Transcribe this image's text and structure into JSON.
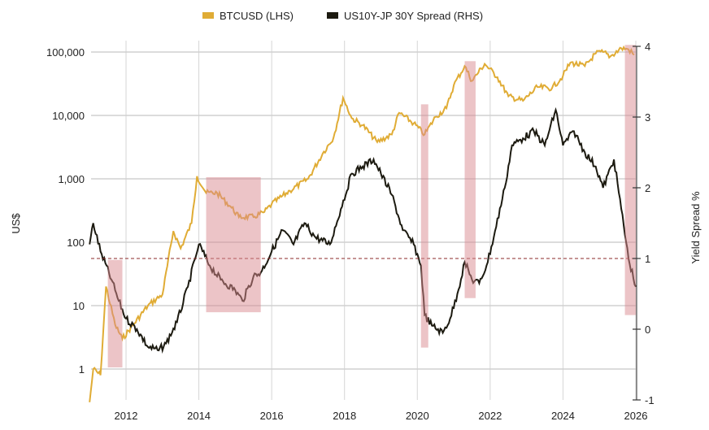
{
  "chart_data": {
    "type": "line",
    "title": "",
    "legend": [
      {
        "name": "BTCUSD (LHS)",
        "color": "#E0AC35"
      },
      {
        "name": "US10Y-JP 30Y Spread (RHS)",
        "color": "#1C1A10"
      }
    ],
    "legend_position": "top-center",
    "ylabel": "US$",
    "y2label": "Yield Spread %",
    "xlim": [
      2011.0,
      2026.0
    ],
    "ylim_log": [
      0.33,
      130000
    ],
    "y2lim": [
      -1,
      4
    ],
    "x_ticks": [
      2012,
      2014,
      2016,
      2018,
      2020,
      2022,
      2024,
      2026
    ],
    "x_tick_labels": [
      "2012",
      "2014",
      "2016",
      "2018",
      "2020",
      "2022",
      "2024",
      "2026"
    ],
    "y_ticks": [
      1,
      10,
      100,
      1000,
      10000,
      100000
    ],
    "y_tick_labels": [
      "1",
      "10",
      "100",
      "1,000",
      "10,000",
      "100,000"
    ],
    "y2_ticks": [
      -1,
      0,
      1,
      2,
      3,
      4
    ],
    "y2_tick_labels": [
      "-1",
      "0",
      "1",
      "2",
      "3",
      "4"
    ],
    "grid": true,
    "reference_line_y2": 1.0,
    "series": [
      {
        "name": "BTCUSD (LHS)",
        "axis": "left",
        "x": [
          2011.0,
          2011.1,
          2011.3,
          2011.45,
          2011.7,
          2011.9,
          2012.2,
          2012.6,
          2013.0,
          2013.3,
          2013.5,
          2013.8,
          2013.95,
          2014.2,
          2014.5,
          2014.9,
          2015.1,
          2015.5,
          2015.8,
          2016.0,
          2016.5,
          2017.0,
          2017.4,
          2017.7,
          2017.96,
          2018.2,
          2018.5,
          2018.9,
          2019.3,
          2019.5,
          2019.9,
          2020.2,
          2020.5,
          2020.8,
          2021.0,
          2021.3,
          2021.5,
          2021.85,
          2022.2,
          2022.5,
          2022.9,
          2023.3,
          2023.7,
          2024.0,
          2024.2,
          2024.6,
          2024.9,
          2025.1,
          2025.3,
          2025.6,
          2025.8,
          2025.95
        ],
        "values": [
          0.3,
          1,
          0.8,
          20,
          5,
          3,
          5,
          10,
          15,
          150,
          80,
          200,
          1100,
          600,
          600,
          350,
          250,
          250,
          300,
          400,
          650,
          1000,
          2500,
          4500,
          19000,
          9000,
          7000,
          3800,
          5000,
          11000,
          7500,
          5000,
          9500,
          13000,
          30000,
          60000,
          35000,
          65000,
          40000,
          20000,
          17000,
          28000,
          27000,
          42000,
          68000,
          60000,
          95000,
          100000,
          85000,
          115000,
          110000,
          90000
        ]
      },
      {
        "name": "US10Y-JP 30Y Spread (RHS)",
        "axis": "right",
        "x": [
          2011.0,
          2011.1,
          2011.3,
          2011.6,
          2011.8,
          2012.0,
          2012.3,
          2012.6,
          2012.9,
          2013.1,
          2013.4,
          2013.7,
          2013.9,
          2014.0,
          2014.3,
          2014.6,
          2015.0,
          2015.2,
          2015.5,
          2015.7,
          2016.0,
          2016.3,
          2016.6,
          2016.9,
          2017.2,
          2017.6,
          2017.9,
          2018.2,
          2018.5,
          2018.8,
          2019.0,
          2019.3,
          2019.6,
          2019.9,
          2020.1,
          2020.2,
          2020.4,
          2020.7,
          2020.9,
          2021.1,
          2021.3,
          2021.5,
          2021.7,
          2021.9,
          2022.1,
          2022.4,
          2022.6,
          2022.9,
          2023.2,
          2023.5,
          2023.8,
          2024.0,
          2024.3,
          2024.6,
          2024.9,
          2025.1,
          2025.4,
          2025.6,
          2025.8,
          2026.0
        ],
        "values": [
          1.2,
          1.5,
          1.1,
          0.7,
          0.4,
          0.15,
          0.0,
          -0.25,
          -0.3,
          -0.2,
          0.1,
          0.6,
          1.0,
          1.2,
          0.9,
          0.7,
          0.55,
          0.4,
          0.75,
          0.8,
          1.1,
          1.4,
          1.2,
          1.5,
          1.3,
          1.2,
          1.7,
          2.2,
          2.3,
          2.4,
          2.2,
          1.9,
          1.4,
          1.2,
          0.9,
          0.2,
          0.05,
          -0.05,
          0.15,
          0.5,
          0.95,
          0.7,
          0.65,
          0.9,
          1.3,
          2.0,
          2.6,
          2.7,
          2.8,
          2.6,
          3.1,
          2.6,
          2.8,
          2.5,
          2.3,
          2.0,
          2.4,
          1.7,
          1.0,
          0.6
        ]
      }
    ],
    "shaded_regions": [
      {
        "x": [
          2011.5,
          2011.9
        ],
        "y2": [
          -0.54,
          0.98
        ]
      },
      {
        "x": [
          2014.2,
          2015.7
        ],
        "y2": [
          0.24,
          2.15
        ]
      },
      {
        "x": [
          2020.1,
          2020.3
        ],
        "y2": [
          -0.26,
          3.18
        ]
      },
      {
        "x": [
          2021.3,
          2021.6
        ],
        "y2": [
          0.44,
          3.79
        ]
      },
      {
        "x": [
          2025.7,
          2026.0
        ],
        "y2": [
          0.2,
          4.02
        ]
      }
    ],
    "shade_color": "#D98A8F",
    "reference_line_color": "#8B2A2A"
  }
}
